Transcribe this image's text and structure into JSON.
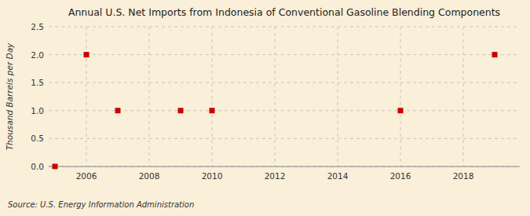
{
  "chart_data": {
    "type": "scatter",
    "title": "Annual U.S. Net Imports from Indonesia of Conventional Gasoline Blending Components",
    "y_label": "Thousand Barrels per Day",
    "annotations": [
      "Source: U.S. Energy Information Administration"
    ],
    "x": [
      2005,
      2006,
      2007,
      2009,
      2010,
      2016,
      2019
    ],
    "values": [
      0,
      2,
      1,
      1,
      1,
      1,
      2
    ],
    "color": "#cc0000",
    "marker": "square",
    "xlim": [
      2004.8,
      2019.8
    ],
    "ylim": [
      0,
      2.5
    ],
    "xticks": [
      2006,
      2008,
      2010,
      2012,
      2014,
      2016,
      2018
    ],
    "yticks": [
      {
        "value": 0.0,
        "label": "0.0"
      },
      0.5,
      {
        "value": 1.0,
        "label": "1.0"
      },
      1.5,
      {
        "value": 2.0,
        "label": "2.0"
      },
      2.5
    ],
    "grid": true
  }
}
